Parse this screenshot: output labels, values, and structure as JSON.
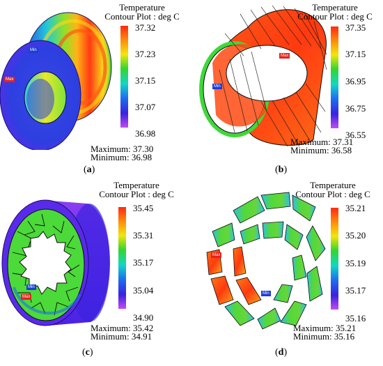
{
  "colors": {
    "scale": [
      "#ff2a10",
      "#ff8a0a",
      "#f2e60c",
      "#33d62e",
      "#12d6c6",
      "#1e6ef0",
      "#3a22e0",
      "#c24cf2"
    ],
    "max_tag": "#e8201c",
    "min_tag": "#1d3cd8"
  },
  "panels": [
    {
      "id": "a",
      "title_line1": "Temperature",
      "title_line2": "Contour Plot : deg C",
      "ticks": [
        "37.32",
        "37.23",
        "37.15",
        "37.07",
        "36.98"
      ],
      "maximum": "Maximum: 37.30",
      "minimum": "Minimum: 36.98",
      "label_open": "(",
      "label_letter": "a",
      "label_close": ")",
      "tag_max": "Max",
      "tag_min": "Min"
    },
    {
      "id": "b",
      "title_line1": "Temperature",
      "title_line2": "Contour Plot : deg C",
      "ticks": [
        "37.35",
        "37.15",
        "36.95",
        "36.75",
        "36.55"
      ],
      "maximum": "Maximum: 37.31",
      "minimum": "Minimum: 36.58",
      "label_open": "(",
      "label_letter": "b",
      "label_close": ")",
      "tag_max": "Max",
      "tag_min": "Min"
    },
    {
      "id": "c",
      "title_line1": "Temperature",
      "title_line2": "Contour Plot : deg C",
      "ticks": [
        "35.45",
        "35.31",
        "35.17",
        "35.04",
        "34.90"
      ],
      "maximum": "Maximum: 35.42",
      "minimum": "Minimum: 34.91",
      "label_open": "(",
      "label_letter": "c",
      "label_close": ")",
      "tag_max": "Max",
      "tag_min": "Min"
    },
    {
      "id": "d",
      "title_line1": "Temperature",
      "title_line2": "Contour Plot : deg C",
      "ticks": [
        "35.21",
        "35.20",
        "35.19",
        "35.17",
        "35.16"
      ],
      "maximum": "Maximum: 35.21",
      "minimum": "Minimum: 35.16",
      "label_open": "(",
      "label_letter": "d",
      "label_close": ")",
      "tag_max": "Max",
      "tag_min": "Min"
    }
  ]
}
